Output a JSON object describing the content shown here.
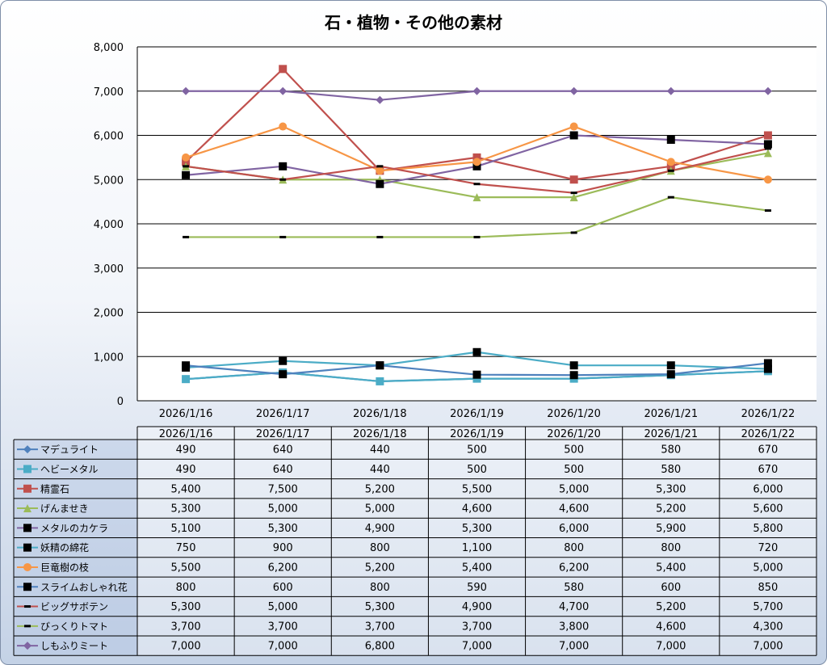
{
  "chart_data": {
    "type": "line",
    "title": "石・植物・その他の素材",
    "categories": [
      "2026/1/16",
      "2026/1/17",
      "2026/1/18",
      "2026/1/19",
      "2026/1/20",
      "2026/1/21",
      "2026/1/22"
    ],
    "ylim": [
      0,
      8000
    ],
    "y_ticks": [
      "0",
      "1,000",
      "2,000",
      "3,000",
      "4,000",
      "5,000",
      "6,000",
      "7,000",
      "8,000"
    ],
    "grid": true,
    "legend": "data-table",
    "series": [
      {
        "name": "マデュライト",
        "color": "#4f81bd",
        "marker": "diamond",
        "values": [
          490,
          640,
          440,
          500,
          500,
          580,
          670
        ],
        "labels": [
          "490",
          "640",
          "440",
          "500",
          "500",
          "580",
          "670"
        ]
      },
      {
        "name": "ヘビーメタル",
        "color": "#4bacc6",
        "marker": "square",
        "values": [
          490,
          640,
          440,
          500,
          500,
          580,
          670
        ],
        "labels": [
          "490",
          "640",
          "440",
          "500",
          "500",
          "580",
          "670"
        ]
      },
      {
        "name": "精霊石",
        "color": "#c0504d",
        "marker": "square",
        "values": [
          5400,
          7500,
          5200,
          5500,
          5000,
          5300,
          6000
        ],
        "labels": [
          "5,400",
          "7,500",
          "5,200",
          "5,500",
          "5,000",
          "5,300",
          "6,000"
        ]
      },
      {
        "name": "げんませき",
        "color": "#9bbb59",
        "marker": "triangle",
        "values": [
          5300,
          5000,
          5000,
          4600,
          4600,
          5200,
          5600
        ],
        "labels": [
          "5,300",
          "5,000",
          "5,000",
          "4,600",
          "4,600",
          "5,200",
          "5,600"
        ]
      },
      {
        "name": "メタルのカケラ",
        "color": "#8064a2",
        "marker": "blacksquare",
        "values": [
          5100,
          5300,
          4900,
          5300,
          6000,
          5900,
          5800
        ],
        "labels": [
          "5,100",
          "5,300",
          "4,900",
          "5,300",
          "6,000",
          "5,900",
          "5,800"
        ]
      },
      {
        "name": "妖精の綿花",
        "color": "#4bacc6",
        "marker": "blacksquare",
        "values": [
          750,
          900,
          800,
          1100,
          800,
          800,
          720
        ],
        "labels": [
          "750",
          "900",
          "800",
          "1,100",
          "800",
          "800",
          "720"
        ]
      },
      {
        "name": "巨竜樹の枝",
        "color": "#f79646",
        "marker": "circle",
        "values": [
          5500,
          6200,
          5200,
          5400,
          6200,
          5400,
          5000
        ],
        "labels": [
          "5,500",
          "6,200",
          "5,200",
          "5,400",
          "6,200",
          "5,400",
          "5,000"
        ]
      },
      {
        "name": "スライムおしゃれ花",
        "color": "#4f81bd",
        "marker": "blacksquare",
        "values": [
          800,
          600,
          800,
          590,
          580,
          600,
          850
        ],
        "labels": [
          "800",
          "600",
          "800",
          "590",
          "580",
          "600",
          "850"
        ]
      },
      {
        "name": "ビッグサボテン",
        "color": "#c0504d",
        "marker": "dash",
        "values": [
          5300,
          5000,
          5300,
          4900,
          4700,
          5200,
          5700
        ],
        "labels": [
          "5,300",
          "5,000",
          "5,300",
          "4,900",
          "4,700",
          "5,200",
          "5,700"
        ]
      },
      {
        "name": "びっくりトマト",
        "color": "#9bbb59",
        "marker": "dash",
        "values": [
          3700,
          3700,
          3700,
          3700,
          3800,
          4600,
          4300
        ],
        "labels": [
          "3,700",
          "3,700",
          "3,700",
          "3,700",
          "3,800",
          "4,600",
          "4,300"
        ]
      },
      {
        "name": "しもふりミート",
        "color": "#8064a2",
        "marker": "diamond",
        "values": [
          7000,
          7000,
          6800,
          7000,
          7000,
          7000,
          7000
        ],
        "labels": [
          "7,000",
          "7,000",
          "6,800",
          "7,000",
          "7,000",
          "7,000",
          "7,000"
        ]
      }
    ]
  }
}
